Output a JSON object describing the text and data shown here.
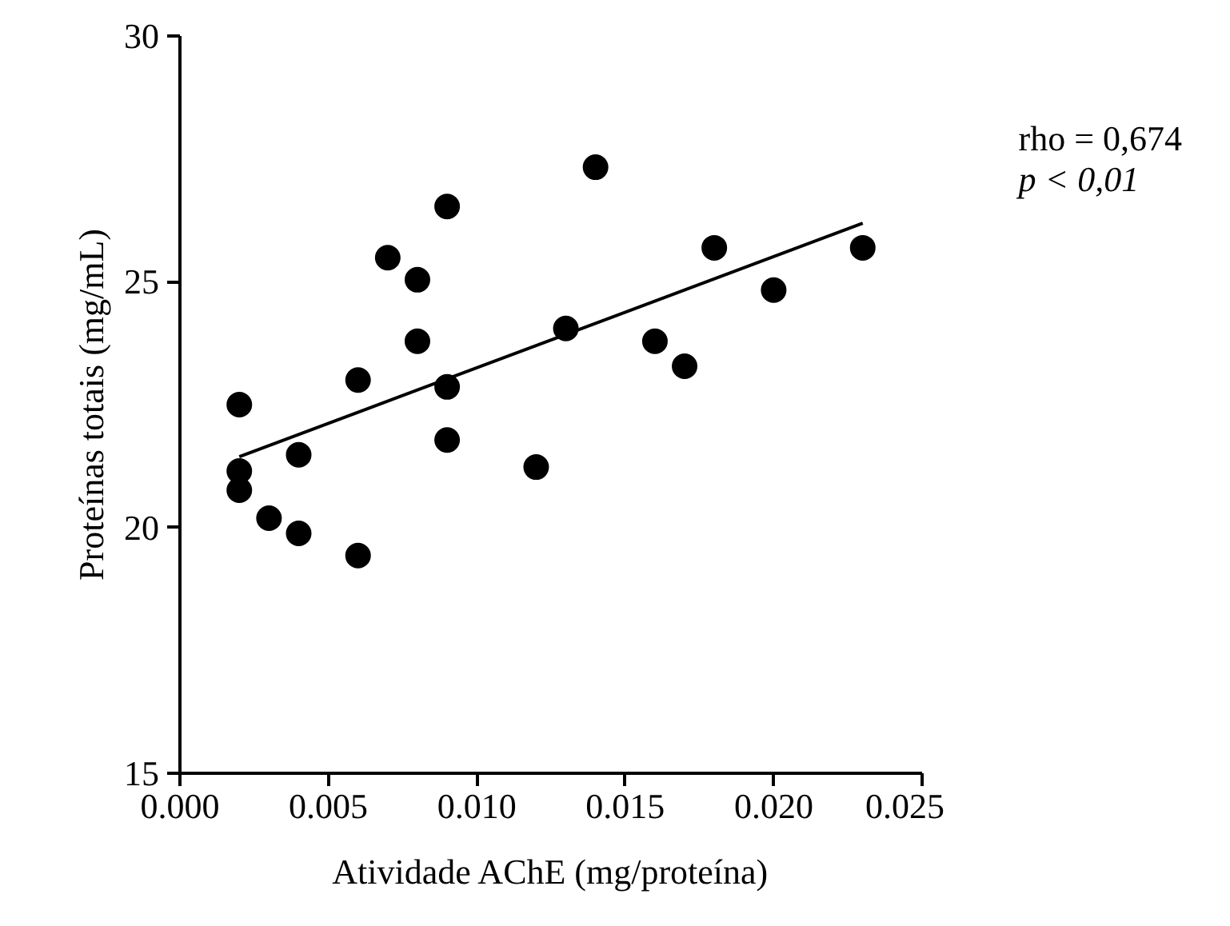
{
  "chart_data": {
    "type": "scatter",
    "xlabel": "Atividade AChE (mg/proteína)",
    "ylabel": "Proteínas totais (mg/mL)",
    "x": [
      0.002,
      0.002,
      0.002,
      0.003,
      0.004,
      0.004,
      0.006,
      0.006,
      0.007,
      0.008,
      0.008,
      0.009,
      0.009,
      0.009,
      0.012,
      0.013,
      0.014,
      0.016,
      0.017,
      0.018,
      0.02,
      0.023
    ],
    "series": [
      {
        "color": "#000000",
        "marker": "circle",
        "values": [
          22.5,
          21.15,
          20.76,
          20.19,
          21.48,
          19.88,
          23.0,
          19.43,
          25.49,
          25.04,
          23.79,
          26.53,
          22.86,
          21.78,
          21.23,
          24.05,
          27.33,
          23.79,
          23.28,
          25.69,
          24.83,
          25.69
        ]
      },
      {
        "type": "line",
        "color": "#000000",
        "x": [
          0.002,
          0.023
        ],
        "values": [
          21.44,
          26.19
        ]
      }
    ],
    "xlim": [
      0,
      0.025
    ],
    "xticks": [
      {
        "value": 0,
        "label": "0.000"
      },
      {
        "value": 0.005,
        "label": "0.005"
      },
      {
        "value": 0.01,
        "label": "0.010"
      },
      {
        "value": 0.015,
        "label": "0.015"
      },
      {
        "value": 0.02,
        "label": "0.020"
      },
      {
        "value": 0.025,
        "label": "0.025"
      }
    ],
    "ylim": [
      15,
      30
    ],
    "yticks": [
      15,
      20,
      25,
      30
    ],
    "grid": false,
    "annotations": [
      "rho = 0,674",
      "p < 0,01"
    ]
  }
}
